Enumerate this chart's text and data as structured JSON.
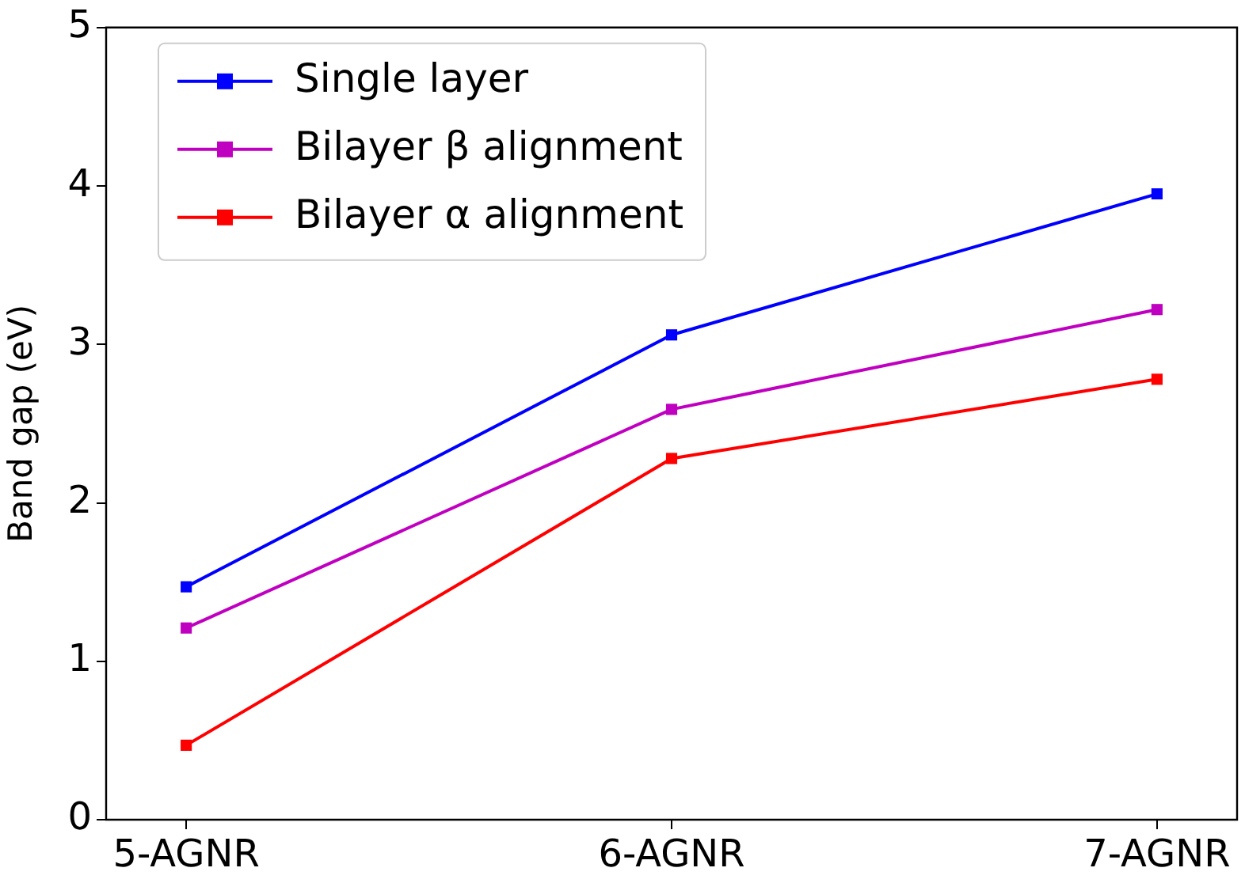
{
  "chart_data": {
    "type": "line",
    "ylabel": "Band gap (eV)",
    "categories": [
      "5-AGNR",
      "6-AGNR",
      "7-AGNR"
    ],
    "series": [
      {
        "name": "Single layer",
        "color": "#0000ff",
        "values": [
          1.47,
          3.06,
          3.95
        ]
      },
      {
        "name": "Bilayer β alignment",
        "color": "#c000c0",
        "values": [
          1.21,
          2.59,
          3.22
        ]
      },
      {
        "name": "Bilayer α alignment",
        "color": "#ff0000",
        "values": [
          0.47,
          2.28,
          2.78
        ]
      }
    ],
    "ylim": [
      0,
      5
    ],
    "yticks": [
      0,
      1,
      2,
      3,
      4,
      5
    ],
    "grid": false,
    "legend": "top left",
    "marker": "square",
    "line_style": "solid"
  }
}
